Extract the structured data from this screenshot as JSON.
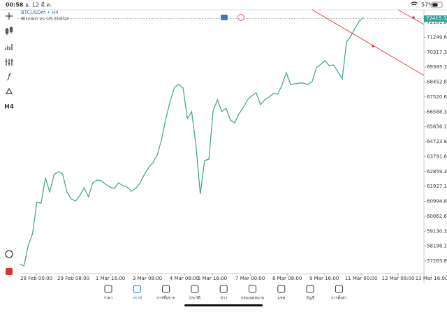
{
  "status_bar": {
    "time": "00:58",
    "date": "อ. 12 มี.ค.",
    "battery": "57%"
  },
  "symbol": {
    "name": "BTCUSDm • H4",
    "description": "Bitcoin vs US Dollar"
  },
  "toolbar": {
    "timeframe": "H4"
  },
  "current_price": 72415.37,
  "chart_data": {
    "type": "line",
    "color": "#3aa57a",
    "values": [
      57091,
      56961,
      58226,
      58967,
      60930,
      60886,
      62456,
      61584,
      62674,
      62849,
      62718,
      61584,
      61148,
      61017,
      61366,
      61845,
      61278,
      62151,
      62325,
      62282,
      62064,
      61889,
      61802,
      62151,
      61976,
      61889,
      61627,
      61802,
      62151,
      62674,
      63110,
      63416,
      63895,
      64855,
      66163,
      67254,
      68126,
      68300,
      68082,
      66163,
      66599,
      64506,
      61453,
      63546,
      63634,
      66687,
      67341,
      66599,
      66817,
      66076,
      65902,
      66469,
      66861,
      67341,
      67603,
      67777,
      67036,
      67341,
      67515,
      67733,
      67690,
      68257,
      69042,
      68300,
      68344,
      68388,
      68388,
      68300,
      68475,
      69347,
      69565,
      69783,
      69478,
      69522,
      69085,
      68649,
      70961,
      71310,
      71833,
      72269,
      72487
    ],
    "xlim": [
      -0.5,
      94.0
    ],
    "xticks": [
      {
        "value": 3.9,
        "label": "28 Feb 00:00"
      },
      {
        "value": 12.5,
        "label": "29 Feb 08:00"
      },
      {
        "value": 21.1,
        "label": "1 Mar 16:00"
      },
      {
        "value": 29.7,
        "label": "3 Mar 08:00"
      },
      {
        "value": 38.3,
        "label": "4 Mar 08:00"
      },
      {
        "value": 44.8,
        "label": "5 Mar 16:00"
      },
      {
        "value": 53.6,
        "label": "7 Mar 00:00"
      },
      {
        "value": 62.2,
        "label": "8 Mar 08:00"
      },
      {
        "value": 70.8,
        "label": "9 Mar 16:00"
      },
      {
        "value": 79.4,
        "label": "11 Mar 00:00"
      },
      {
        "value": 88.0,
        "label": "12 Mar 08:00"
      },
      {
        "value": 95.8,
        "label": "13 Mar 16:00"
      }
    ],
    "ylim": [
      56481,
      72967
    ],
    "yticks": [
      72181.85,
      {
        "value": 71249.6,
        "label": "71249.60"
      },
      70317.35,
      {
        "value": 69385.1,
        "label": "69385.10"
      },
      68452.85,
      {
        "value": 67520.6,
        "label": "67520.60"
      },
      66588.35,
      {
        "value": 65656.1,
        "label": "65656.10"
      },
      64723.85,
      {
        "value": 63791.6,
        "label": "63791.60"
      },
      62859.35,
      {
        "value": 61927.1,
        "label": "61927.10"
      },
      60994.85,
      {
        "value": 60062.6,
        "label": "60062.60"
      },
      59130.35,
      {
        "value": 58198.1,
        "label": "58198.10"
      },
      57265.85
    ]
  },
  "tabs": [
    "ราคา",
    "กราฟ",
    "การซื้อขาย",
    "ประวัติ",
    "ข่าว",
    "กล่องจดหมาย",
    "แชท",
    "บัญชี",
    "การตั้งค่า"
  ],
  "active_tab": 1
}
